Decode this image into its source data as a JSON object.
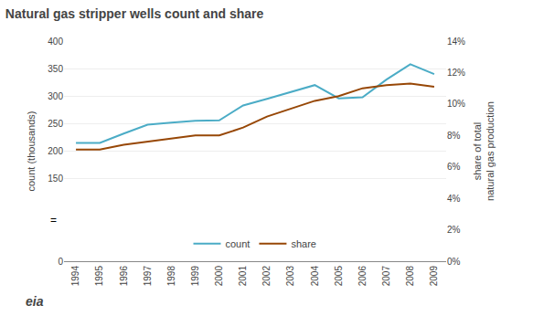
{
  "chart_data": {
    "type": "line",
    "title": "Natural gas stripper wells count and share",
    "y_label": "count (thousands)",
    "y2_label": "share of total\nnatural gas production",
    "x": [
      1994,
      1995,
      1996,
      1997,
      1998,
      1999,
      2000,
      2001,
      2002,
      2003,
      2004,
      2005,
      2006,
      2007,
      2008,
      2009
    ],
    "series": [
      {
        "name": "count",
        "color": "#4bacc6",
        "values": [
          215,
          215,
          232,
          248,
          252,
          255,
          256,
          283,
          295,
          308,
          320,
          296,
          298,
          330,
          358,
          340
        ]
      },
      {
        "name": "share",
        "color": "#974706",
        "axis": "y2",
        "values": [
          7.1,
          7.1,
          7.4,
          7.6,
          7.8,
          8.0,
          8.0,
          8.5,
          9.2,
          9.7,
          10.2,
          10.5,
          11.0,
          11.2,
          11.3,
          11.1
        ]
      }
    ],
    "xlim": [
      1993.5,
      2009.5
    ],
    "xticks": [
      1994,
      1995,
      1996,
      1997,
      1998,
      1999,
      2000,
      2001,
      2002,
      2003,
      2004,
      2005,
      2006,
      2007,
      2008,
      2009
    ],
    "ylim": [
      0,
      400
    ],
    "yticks": [
      0,
      150,
      200,
      250,
      300,
      350,
      400
    ],
    "y2lim": [
      0,
      14
    ],
    "y2ticks": [
      {
        "value": 0,
        "label": "0%"
      },
      {
        "value": 2,
        "label": "2%"
      },
      {
        "value": 4,
        "label": "4%"
      },
      {
        "value": 6,
        "label": "6%"
      },
      {
        "value": 8,
        "label": "8%"
      },
      {
        "value": 10,
        "label": "10%"
      },
      {
        "value": 12,
        "label": "12%"
      },
      {
        "value": 14,
        "label": "14%"
      }
    ],
    "grid": true,
    "legend": "lower center",
    "annotations": [
      "=",
      "eia"
    ]
  }
}
